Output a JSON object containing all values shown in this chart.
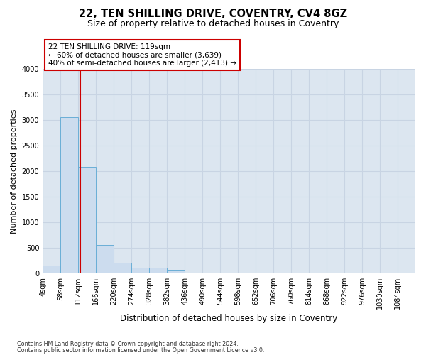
{
  "title": "22, TEN SHILLING DRIVE, COVENTRY, CV4 8GZ",
  "subtitle": "Size of property relative to detached houses in Coventry",
  "xlabel": "Distribution of detached houses by size in Coventry",
  "ylabel": "Number of detached properties",
  "footnote1": "Contains HM Land Registry data © Crown copyright and database right 2024.",
  "footnote2": "Contains public sector information licensed under the Open Government Licence v3.0.",
  "bar_color": "#ccdcee",
  "bar_edge_color": "#6aaed6",
  "grid_color": "#c8d4e3",
  "bg_color": "#dce6f0",
  "annotation_box_color": "#cc0000",
  "vline_color": "#cc0000",
  "property_size": 119,
  "bin_width": 54,
  "bin_starts": [
    4,
    58,
    112,
    166,
    220,
    274,
    328,
    382,
    436,
    490,
    544,
    598,
    652,
    706,
    760,
    814,
    868,
    922,
    976,
    1030,
    1084
  ],
  "bar_heights": [
    150,
    3060,
    2080,
    560,
    210,
    115,
    110,
    65,
    0,
    0,
    0,
    0,
    0,
    0,
    0,
    0,
    0,
    0,
    0,
    0,
    0
  ],
  "annotation_text": "22 TEN SHILLING DRIVE: 119sqm\n← 60% of detached houses are smaller (3,639)\n40% of semi-detached houses are larger (2,413) →",
  "ylim": [
    0,
    4000
  ],
  "yticks": [
    0,
    500,
    1000,
    1500,
    2000,
    2500,
    3000,
    3500,
    4000
  ],
  "title_fontsize": 10.5,
  "subtitle_fontsize": 9,
  "tick_fontsize": 7,
  "ylabel_fontsize": 8,
  "xlabel_fontsize": 8.5,
  "annotation_fontsize": 7.5
}
